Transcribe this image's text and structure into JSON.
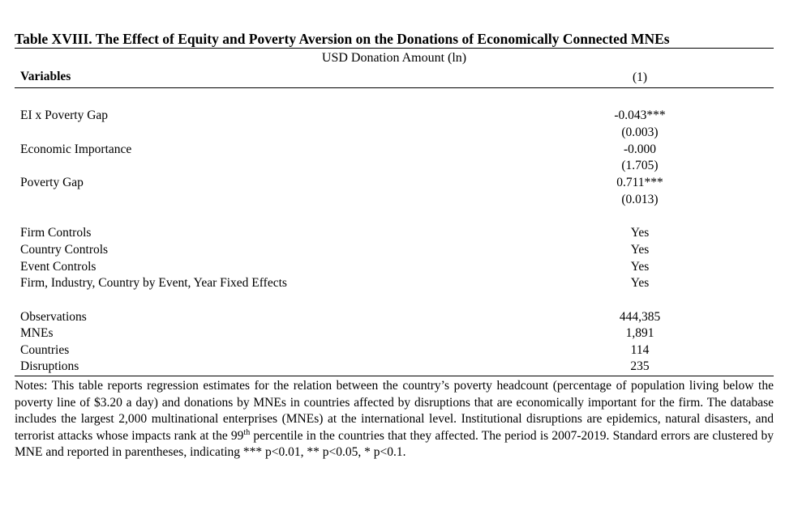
{
  "table": {
    "title": "Table XVIII. The Effect of Equity and Poverty Aversion on the Donations of Economically Connected MNEs",
    "dependent_variable": "USD Donation Amount (ln)",
    "variables_header": "Variables",
    "column_header": "(1)",
    "coefficients": [
      {
        "label": "EI x Poverty Gap",
        "estimate": "-0.043***",
        "se": "(0.003)"
      },
      {
        "label": "Economic Importance",
        "estimate": "-0.000",
        "se": "(1.705)"
      },
      {
        "label": "Poverty Gap",
        "estimate": "0.711***",
        "se": "(0.013)"
      }
    ],
    "controls": [
      {
        "label": "Firm Controls",
        "value": "Yes"
      },
      {
        "label": "Country Controls",
        "value": "Yes"
      },
      {
        "label": "Event Controls",
        "value": "Yes"
      },
      {
        "label": "Firm, Industry, Country by Event, Year Fixed Effects",
        "value": "Yes"
      }
    ],
    "statistics": [
      {
        "label": "Observations",
        "value": "444,385"
      },
      {
        "label": "MNEs",
        "value": "1,891"
      },
      {
        "label": "Countries",
        "value": "114"
      },
      {
        "label": "Disruptions",
        "value": "235"
      }
    ]
  },
  "notes": {
    "before_sup": "Notes: This table reports regression estimates for the relation between the country’s poverty headcount (percentage of population living below the poverty line of $3.20 a day) and donations by MNEs in countries affected by disruptions that are economically important for the firm. The database includes the largest 2,000 multinational enterprises (MNEs) at the international level. Institutional disruptions are epidemics, natural disasters, and terrorist attacks whose impacts rank at the 99",
    "sup": "th",
    "after_sup": " percentile in the countries that they affected. The period is 2007-2019. Standard errors are clustered by MNE and reported in parentheses, indicating *** p<0.01, ** p<0.05, * p<0.1."
  }
}
